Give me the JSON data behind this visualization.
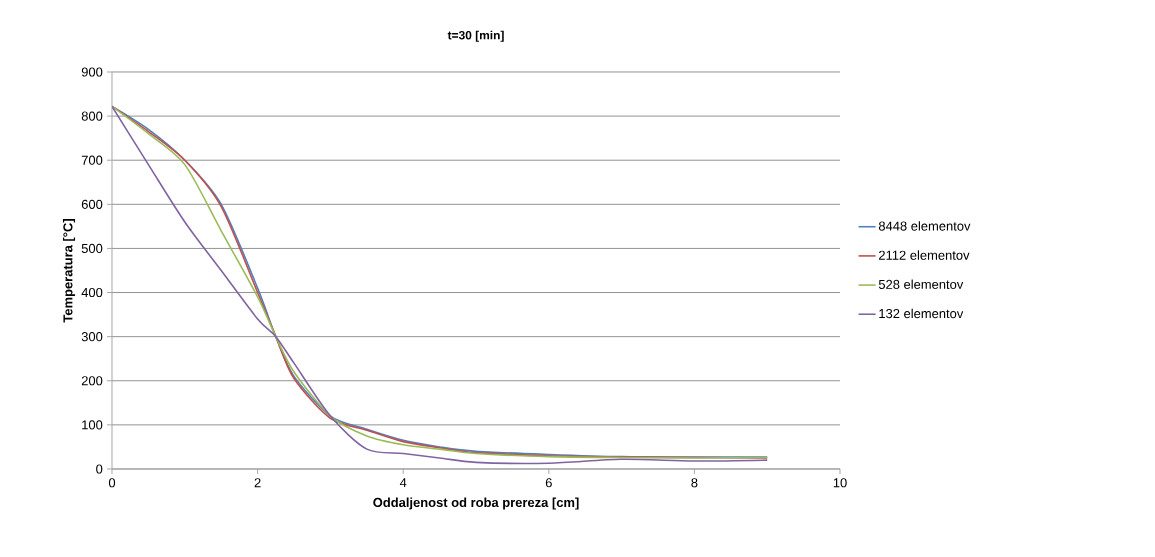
{
  "chart_data": {
    "type": "line",
    "title": "t=30 [min]",
    "xlabel": "Oddaljenost od roba prereza [cm]",
    "ylabel": "Temperatura [°C]",
    "x": [
      0,
      0.5,
      1,
      1.5,
      2,
      2.25,
      2.5,
      3,
      3.5,
      4,
      4.5,
      5,
      6,
      7,
      8,
      9
    ],
    "series": [
      {
        "name": "8448 elementov",
        "color": "#4f81bd",
        "values": [
          822,
          770,
          700,
          600,
          410,
          300,
          210,
          120,
          90,
          65,
          50,
          40,
          33,
          28,
          27,
          27
        ]
      },
      {
        "name": "2112 elementov",
        "color": "#c0504d",
        "values": [
          822,
          765,
          700,
          595,
          400,
          300,
          205,
          115,
          88,
          62,
          48,
          37,
          30,
          27,
          26,
          25
        ]
      },
      {
        "name": "528 elementov",
        "color": "#9bbb59",
        "values": [
          822,
          760,
          690,
          540,
          390,
          300,
          220,
          120,
          75,
          55,
          45,
          35,
          28,
          26,
          25,
          26
        ]
      },
      {
        "name": "132 elementov",
        "color": "#8064a2",
        "values": [
          822,
          690,
          560,
          450,
          340,
          300,
          240,
          120,
          45,
          35,
          25,
          15,
          13,
          22,
          18,
          20
        ]
      }
    ],
    "xlim": [
      0,
      10
    ],
    "ylim": [
      0,
      900
    ],
    "xticks": [
      0,
      2,
      4,
      6,
      8,
      10
    ],
    "yticks": [
      0,
      100,
      200,
      300,
      400,
      500,
      600,
      700,
      800,
      900
    ],
    "grid": "y",
    "legend": "right",
    "marker": "none",
    "line_style": "solid"
  }
}
